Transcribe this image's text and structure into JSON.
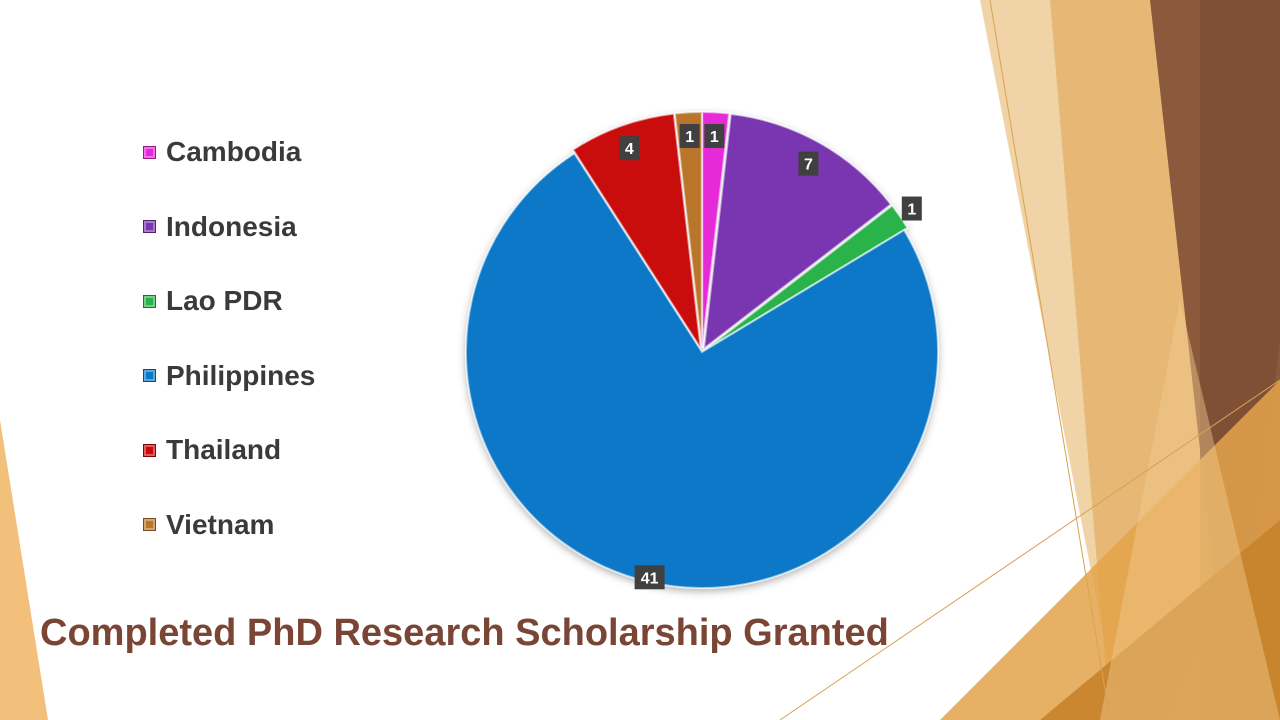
{
  "chart_data": {
    "type": "pie",
    "title": "Completed PhD Research Scholarship Granted",
    "categories": [
      "Cambodia",
      "Indonesia",
      "Lao PDR",
      "Philippines",
      "Thailand",
      "Vietnam"
    ],
    "values": [
      1,
      7,
      1,
      41,
      4,
      1
    ],
    "colors": [
      "#e629d8",
      "#7a35b0",
      "#2bb24c",
      "#0a78c8",
      "#c90a0a",
      "#b9752a"
    ],
    "legend_position": "left",
    "data_labels": true
  }
}
